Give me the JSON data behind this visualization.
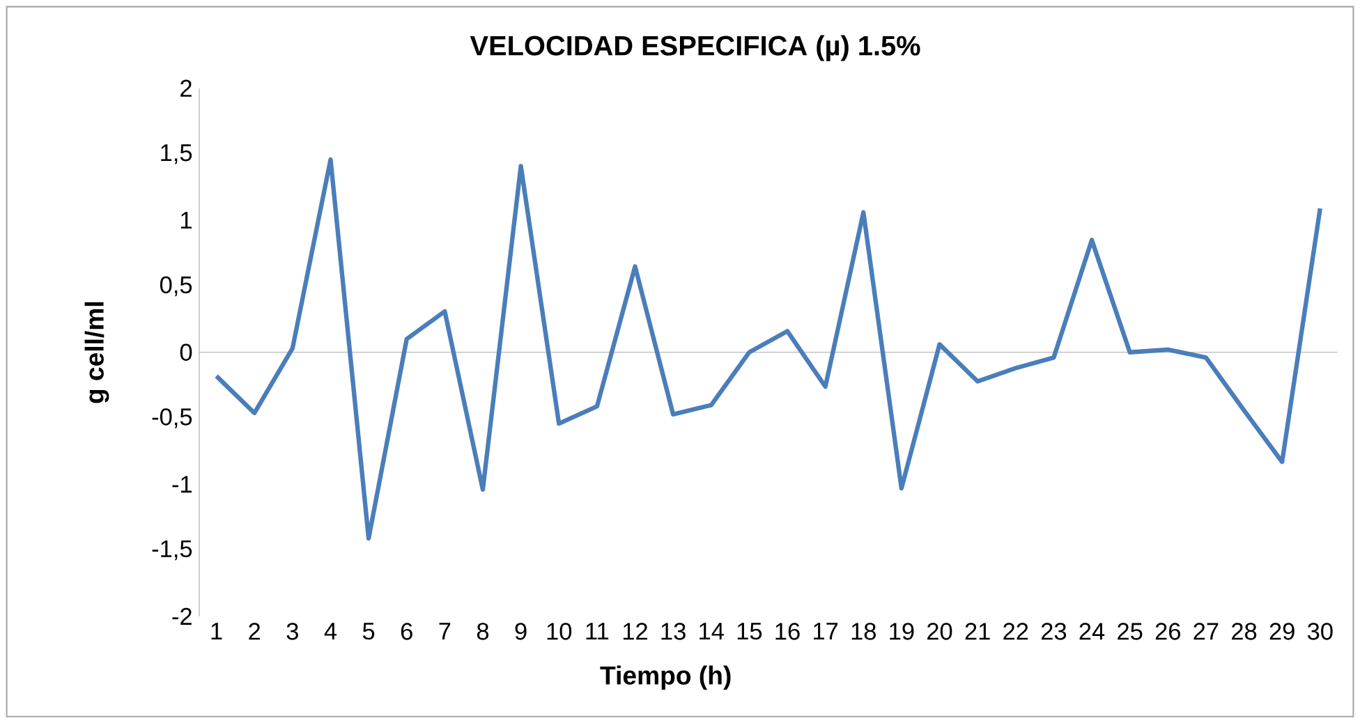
{
  "chart_data": {
    "type": "line",
    "title": "VELOCIDAD ESPECIFICA (µ) 1.5%",
    "xlabel": "Tiempo (h)",
    "ylabel": "g cell/ml",
    "categories": [
      "1",
      "2",
      "3",
      "4",
      "5",
      "6",
      "7",
      "8",
      "9",
      "10",
      "11",
      "12",
      "13",
      "14",
      "15",
      "16",
      "17",
      "18",
      "19",
      "20",
      "21",
      "22",
      "23",
      "24",
      "25",
      "26",
      "27",
      "28",
      "29",
      "30"
    ],
    "series": [
      {
        "color": "#4a7ebb",
        "values": [
          -0.18,
          -0.46,
          0.03,
          1.46,
          -1.41,
          0.1,
          0.31,
          -1.04,
          1.41,
          -0.54,
          -0.41,
          0.65,
          -0.47,
          -0.4,
          0.0,
          0.16,
          -0.26,
          1.06,
          -1.03,
          0.06,
          -0.22,
          -0.12,
          -0.04,
          0.85,
          0.0,
          0.02,
          -0.04,
          -0.44,
          -0.83,
          1.09
        ]
      }
    ],
    "ylim": [
      -2,
      2
    ],
    "yticks": [
      2,
      {
        "value": 1.5,
        "label": "1,5"
      },
      1,
      {
        "value": 0.5,
        "label": "0,5"
      },
      0,
      {
        "value": -0.5,
        "label": "-0,5"
      },
      -1,
      {
        "value": -1.5,
        "label": "-1,5"
      },
      -2
    ]
  }
}
